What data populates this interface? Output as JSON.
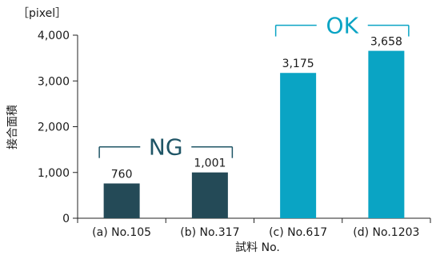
{
  "chart_data": {
    "type": "bar",
    "unit": "［pixel］",
    "xlabel": "試料 No.",
    "ylabel": "接合面積",
    "ylim": [
      0,
      4000
    ],
    "yticks": [
      0,
      1000,
      2000,
      3000,
      4000
    ],
    "ytick_labels": [
      "0",
      "1,000",
      "2,000",
      "3,000",
      "4,000"
    ],
    "categories": [
      "(a)  No.105",
      "(b)  No.317",
      "(c)  No.617",
      "(d)  No.1203"
    ],
    "values": [
      760,
      1001,
      3175,
      3658
    ],
    "value_labels": [
      "760",
      "1,001",
      "3,175",
      "3,658"
    ],
    "bar_colors": [
      "#244a57",
      "#244a57",
      "#0aa4c4",
      "#0aa4c4"
    ],
    "grid": false,
    "groups": [
      {
        "label": "NG",
        "color": "#1f5566",
        "from": 0,
        "to": 1
      },
      {
        "label": "OK",
        "color": "#0aa4c4",
        "from": 2,
        "to": 3
      }
    ]
  }
}
